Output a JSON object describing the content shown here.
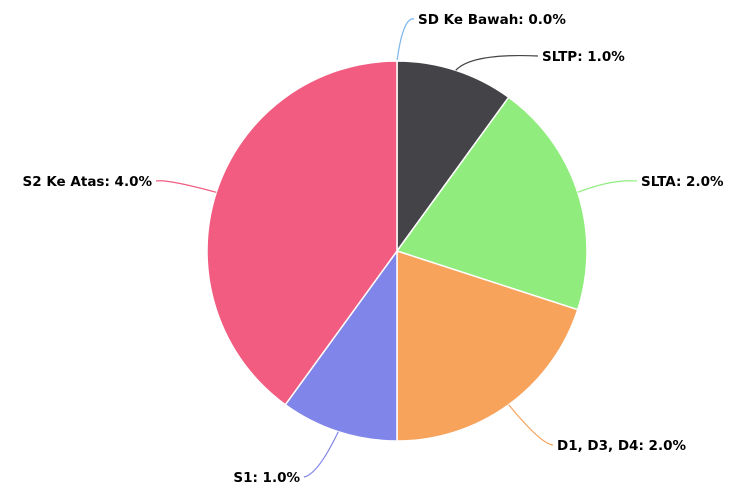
{
  "chart_data": {
    "type": "pie",
    "title": "",
    "categories": [
      "SD Ke Bawah",
      "SLTP",
      "SLTA",
      "D1, D3, D4",
      "S1",
      "S2 Ke Atas"
    ],
    "values": [
      0.0,
      1.0,
      2.0,
      2.0,
      1.0,
      4.0
    ],
    "labels": [
      "SD Ke Bawah: 0.0%",
      "SLTP: 1.0%",
      "SLTA: 2.0%",
      "D1, D3, D4: 2.0%",
      "S1: 1.0%",
      "S2 Ke Atas: 4.0%"
    ],
    "colors": [
      "#7cb5ec",
      "#434348",
      "#90ed7d",
      "#f7a35c",
      "#8085e9",
      "#f15c80"
    ],
    "start_angle_deg": 0,
    "direction": "clockwise",
    "legend": "none"
  }
}
